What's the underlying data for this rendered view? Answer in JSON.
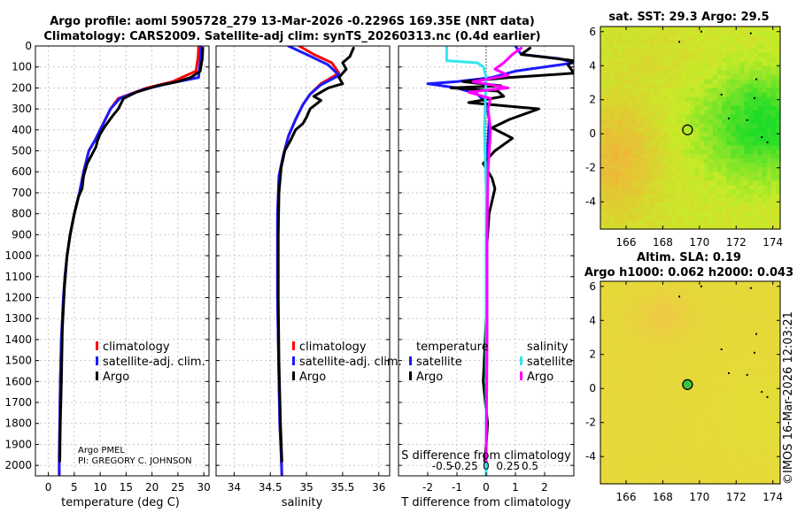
{
  "titles": {
    "line1": "Argo profile: aoml 5905728_279 13-Mar-2026 -0.2296S 169.35E (NRT data)",
    "line2": "Climatology: CARS2009. Satellite-adj clim: synTS_20260313.nc (0.4d earlier)"
  },
  "colors": {
    "climatology": "#ff0000",
    "satellite_adj": "#1a1aff",
    "argo": "#000000",
    "satellite_salinity": "#33e6f0",
    "argo_salinity": "#ff00ff"
  },
  "chart_data": [
    {
      "type": "line",
      "name": "temperature-profile",
      "xlabel": "temperature (deg C)",
      "ylabel": "",
      "xlim": [
        -2.5,
        31
      ],
      "ylim": [
        0,
        2050
      ],
      "y_inverted": true,
      "xticks": [
        0,
        5,
        10,
        15,
        20,
        25,
        30
      ],
      "yticks": [
        0,
        100,
        200,
        300,
        400,
        500,
        600,
        700,
        800,
        900,
        1000,
        1100,
        1200,
        1300,
        1400,
        1500,
        1600,
        1700,
        1800,
        1900,
        2000
      ],
      "legend": [
        "climatology",
        "satellite-adj. clim.",
        "Argo"
      ],
      "annotation": [
        "Argo PMEL",
        "PI: GREGORY C. JOHNSON"
      ],
      "series": [
        {
          "name": "climatology",
          "color": "#ff0000",
          "x": [
            29.0,
            28.9,
            28.5,
            24.0,
            19.0,
            13.5,
            12.0,
            10.0,
            9.0,
            7.8,
            6.8,
            6.0,
            5.0,
            4.2,
            3.6,
            3.2,
            2.9,
            2.5,
            2.3,
            2.2,
            2.1,
            2.1
          ],
          "depth": [
            0,
            50,
            120,
            170,
            200,
            250,
            300,
            400,
            450,
            500,
            600,
            700,
            800,
            900,
            1000,
            1100,
            1200,
            1400,
            1600,
            1800,
            1950,
            2050
          ]
        },
        {
          "name": "satellite-adj. clim.",
          "color": "#1a1aff",
          "x": [
            29.5,
            29.4,
            29.0,
            23.0,
            18.0,
            13.8,
            12.0,
            10.0,
            9.0,
            7.8,
            6.8,
            6.0,
            5.0,
            4.2,
            3.6,
            3.2,
            2.9,
            2.5,
            2.3,
            2.2,
            2.1,
            2.1
          ],
          "depth": [
            0,
            50,
            150,
            180,
            210,
            250,
            300,
            400,
            450,
            500,
            600,
            700,
            800,
            900,
            1000,
            1100,
            1200,
            1400,
            1600,
            1800,
            1950,
            2050
          ]
        },
        {
          "name": "Argo",
          "color": "#000000",
          "x": [
            29.8,
            29.7,
            29.3,
            27.5,
            25.0,
            21.0,
            17.0,
            14.5,
            13.5,
            12.5,
            11.0,
            10.0,
            9.5,
            9.2,
            7.5,
            6.8,
            6.5,
            5.8,
            5.0,
            4.2,
            3.6,
            3.1,
            2.7,
            2.5,
            2.3,
            2.2
          ],
          "depth": [
            10,
            60,
            120,
            150,
            170,
            190,
            220,
            250,
            300,
            330,
            380,
            420,
            450,
            480,
            560,
            620,
            680,
            720,
            800,
            900,
            1000,
            1150,
            1350,
            1600,
            1800,
            1980
          ]
        }
      ]
    },
    {
      "type": "line",
      "name": "salinity-profile",
      "xlabel": "salinity",
      "ylabel": "",
      "xlim": [
        33.75,
        36.15
      ],
      "ylim": [
        0,
        2050
      ],
      "y_inverted": true,
      "xticks": [
        34,
        34.5,
        35,
        35.5,
        36
      ],
      "legend": [
        "climatology",
        "satellite-adj. clim.",
        "Argo"
      ],
      "series": [
        {
          "name": "climatology",
          "color": "#ff0000",
          "x": [
            34.9,
            35.1,
            35.35,
            35.45,
            35.2,
            35.05,
            34.95,
            34.85,
            34.75,
            34.68,
            34.62,
            34.6,
            34.6,
            34.6,
            34.61,
            34.62,
            34.63,
            34.65,
            34.66
          ],
          "depth": [
            0,
            40,
            80,
            130,
            180,
            230,
            280,
            350,
            430,
            520,
            620,
            800,
            1000,
            1200,
            1400,
            1600,
            1800,
            1950,
            2050
          ]
        },
        {
          "name": "satellite-adj. clim.",
          "color": "#1a1aff",
          "x": [
            34.75,
            35.0,
            35.3,
            35.45,
            35.2,
            35.05,
            34.95,
            34.85,
            34.75,
            34.68,
            34.62,
            34.6,
            34.6,
            34.6,
            34.61,
            34.62,
            34.63,
            34.65,
            34.66
          ],
          "depth": [
            0,
            40,
            90,
            140,
            185,
            230,
            280,
            350,
            430,
            520,
            620,
            800,
            1000,
            1200,
            1400,
            1600,
            1800,
            1950,
            2050
          ]
        },
        {
          "name": "Argo",
          "color": "#000000",
          "x": [
            35.65,
            35.6,
            35.5,
            35.55,
            35.45,
            35.5,
            35.3,
            35.1,
            35.2,
            35.05,
            35.0,
            34.95,
            34.85,
            34.78,
            34.7,
            34.65,
            34.62,
            34.61,
            34.61,
            34.62,
            34.64,
            34.66
          ],
          "depth": [
            10,
            50,
            80,
            110,
            150,
            180,
            200,
            240,
            260,
            300,
            340,
            370,
            400,
            450,
            500,
            580,
            700,
            900,
            1200,
            1500,
            1800,
            1980
          ]
        }
      ]
    },
    {
      "type": "line",
      "name": "difference-profile",
      "xlabel": "T difference from climatology",
      "top_xlabel": "S difference from climatology",
      "xlim": [
        -3,
        3
      ],
      "ylim": [
        0,
        2050
      ],
      "y_inverted": true,
      "xticks": [
        -2,
        -1,
        0,
        1,
        2
      ],
      "xtick_labels": [
        "-2",
        "-1",
        "0",
        "1",
        "2"
      ],
      "s_xticks": [
        -0.5,
        -0.25,
        0,
        0.25,
        0.5
      ],
      "s_xtick_labels": [
        "-0.5",
        "-0.25",
        "0",
        "0.25",
        "0.5"
      ],
      "legend_headers": [
        "temperature",
        "salinity"
      ],
      "legend_left": [
        "satellite",
        "Argo"
      ],
      "legend_right": [
        "satellite",
        "Argo"
      ],
      "series": [
        {
          "name": "temperature satellite",
          "color": "#1a1aff",
          "x": [
            1.0,
            1.2,
            2.5,
            3.0,
            1.0,
            0.2,
            -1.0,
            -2.0,
            -1.0,
            -0.3,
            0.0,
            0.1,
            0.05,
            0.0,
            0.0,
            0.0,
            0.0,
            0.0,
            0.0
          ],
          "depth": [
            0,
            40,
            60,
            80,
            120,
            150,
            170,
            180,
            200,
            230,
            270,
            350,
            500,
            700,
            1000,
            1300,
            1600,
            1900,
            2050
          ]
        },
        {
          "name": "temperature Argo",
          "color": "#000000",
          "x": [
            1.5,
            1.2,
            3.0,
            2.8,
            3.0,
            0.8,
            -0.8,
            0.5,
            -1.2,
            0.4,
            0.6,
            -0.6,
            1.8,
            0.8,
            0.2,
            0.9,
            0.3,
            -0.1,
            0.2,
            0.3,
            0.1,
            0.0,
            0.0,
            -0.1,
            0.05,
            0.0,
            -0.05
          ],
          "depth": [
            10,
            40,
            70,
            90,
            130,
            150,
            170,
            190,
            200,
            215,
            240,
            270,
            300,
            350,
            390,
            440,
            500,
            560,
            630,
            680,
            800,
            1000,
            1300,
            1600,
            1800,
            1900,
            1980
          ]
        },
        {
          "name": "salinity satellite",
          "color": "#33e6f0",
          "x": [
            -0.45,
            -0.45,
            -0.45,
            -0.1,
            -0.03,
            0.0,
            -0.02,
            0.0,
            0.0,
            0.0,
            0.0
          ],
          "depth": [
            0,
            40,
            70,
            80,
            100,
            150,
            400,
            700,
            1200,
            1800,
            2050
          ]
        },
        {
          "name": "salinity Argo",
          "color": "#ff00ff",
          "x": [
            0.4,
            0.3,
            0.2,
            0.1,
            0.25,
            -0.15,
            0.25,
            -0.2,
            0.05,
            0.02,
            0.05,
            0.02,
            0.01,
            0.01,
            0.0
          ],
          "depth": [
            10,
            40,
            80,
            110,
            140,
            170,
            200,
            220,
            250,
            300,
            400,
            600,
            900,
            1400,
            1980
          ]
        }
      ]
    },
    {
      "type": "heatmap",
      "name": "sst-map",
      "title": "sat. SST: 29.3 Argo: 29.5",
      "xlim": [
        164.6,
        174.4
      ],
      "ylim": [
        -5.6,
        6.3
      ],
      "xticks": [
        166,
        168,
        170,
        172,
        174
      ],
      "yticks": [
        -4,
        -2,
        0,
        2,
        4,
        6
      ],
      "marker": {
        "lon": 169.35,
        "lat": 0.23
      }
    },
    {
      "type": "heatmap",
      "name": "sla-map",
      "title": "Altim. SLA: 0.19",
      "subtitle": "Argo h1000: 0.062 h2000: 0.043",
      "xlim": [
        164.6,
        174.4
      ],
      "ylim": [
        -5.6,
        6.3
      ],
      "xticks": [
        166,
        168,
        170,
        172,
        174
      ],
      "yticks": [
        -4,
        -2,
        0,
        2,
        4,
        6
      ],
      "marker": {
        "lon": 169.35,
        "lat": 0.23
      }
    }
  ],
  "side_label": "©IMOS 16-Mar-2026 12:03:21"
}
